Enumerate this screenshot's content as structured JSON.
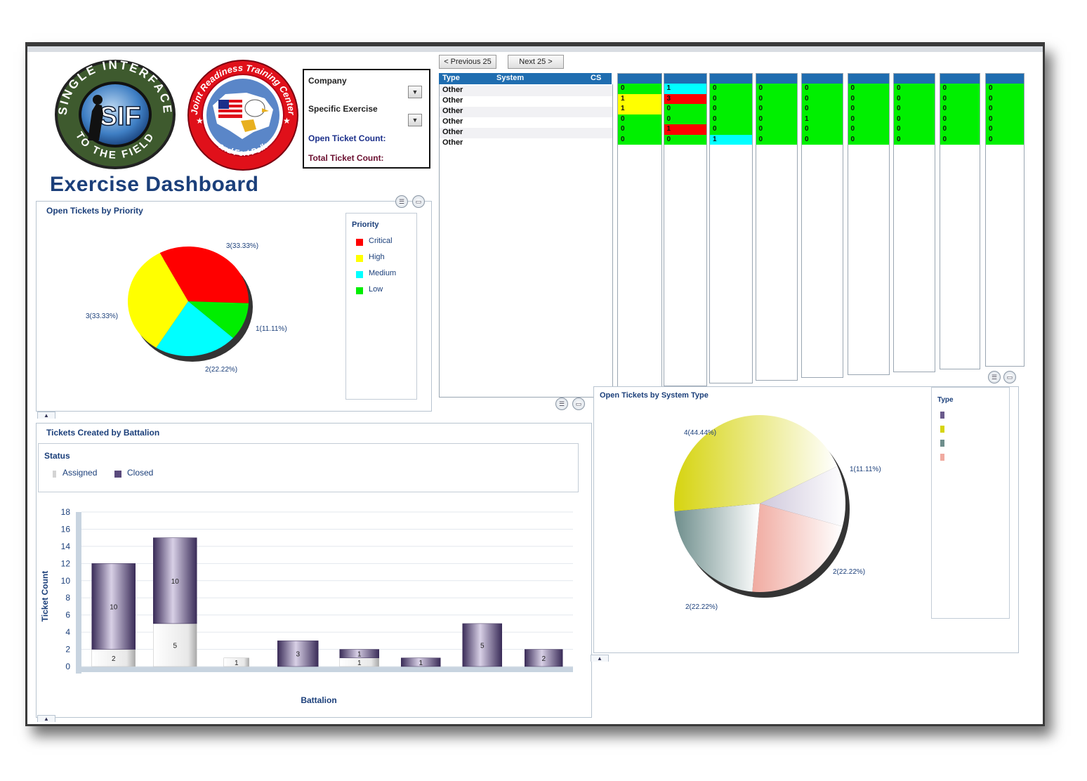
{
  "logos": {
    "sif_top_text": "SINGLE INTERFACE",
    "sif_center_text": "SIF",
    "sif_bottom_text": "TO THE FIELD",
    "jrtc_top_text": "Joint Readiness Training Center",
    "jrtc_bottom_text": "and Fort Polk"
  },
  "dashboard_title": "Exercise Dashboard",
  "filters": {
    "company_label": "Company",
    "exercise_label": "Specific Exercise",
    "open_count_label": "Open Ticket Count:",
    "total_count_label": "Total Ticket Count:"
  },
  "pager": {
    "prev_label": "< Previous 25",
    "next_label": "Next 25 >"
  },
  "grid": {
    "columns": [
      "Type",
      "System",
      "CS"
    ],
    "rows": [
      "Other",
      "Other",
      "Other",
      "Other",
      "Other",
      "Other"
    ]
  },
  "status_columns": [
    {
      "cells": [
        {
          "v": "0",
          "c": "#00f000"
        },
        {
          "v": "1",
          "c": "#ffff00"
        },
        {
          "v": "1",
          "c": "#ffff00"
        },
        {
          "v": "0",
          "c": "#00f000"
        },
        {
          "v": "0",
          "c": "#00f000"
        },
        {
          "v": "0",
          "c": "#00f000"
        }
      ]
    },
    {
      "cells": [
        {
          "v": "1",
          "c": "#00ffff"
        },
        {
          "v": "3",
          "c": "#ff0000"
        },
        {
          "v": "0",
          "c": "#00f000"
        },
        {
          "v": "0",
          "c": "#00f000"
        },
        {
          "v": "1",
          "c": "#ff0000"
        },
        {
          "v": "0",
          "c": "#00f000"
        }
      ]
    },
    {
      "cells": [
        {
          "v": "0",
          "c": "#00f000"
        },
        {
          "v": "0",
          "c": "#00f000"
        },
        {
          "v": "0",
          "c": "#00f000"
        },
        {
          "v": "0",
          "c": "#00f000"
        },
        {
          "v": "0",
          "c": "#00f000"
        },
        {
          "v": "1",
          "c": "#00ffff"
        }
      ]
    },
    {
      "cells": [
        {
          "v": "0",
          "c": "#00f000"
        },
        {
          "v": "0",
          "c": "#00f000"
        },
        {
          "v": "0",
          "c": "#00f000"
        },
        {
          "v": "0",
          "c": "#00f000"
        },
        {
          "v": "0",
          "c": "#00f000"
        },
        {
          "v": "0",
          "c": "#00f000"
        }
      ]
    },
    {
      "cells": [
        {
          "v": "0",
          "c": "#00f000"
        },
        {
          "v": "0",
          "c": "#00f000"
        },
        {
          "v": "0",
          "c": "#00f000"
        },
        {
          "v": "1",
          "c": "#00f000"
        },
        {
          "v": "0",
          "c": "#00f000"
        },
        {
          "v": "0",
          "c": "#00f000"
        }
      ]
    },
    {
      "cells": [
        {
          "v": "0",
          "c": "#00f000"
        },
        {
          "v": "0",
          "c": "#00f000"
        },
        {
          "v": "0",
          "c": "#00f000"
        },
        {
          "v": "0",
          "c": "#00f000"
        },
        {
          "v": "0",
          "c": "#00f000"
        },
        {
          "v": "0",
          "c": "#00f000"
        }
      ]
    },
    {
      "cells": [
        {
          "v": "0",
          "c": "#00f000"
        },
        {
          "v": "0",
          "c": "#00f000"
        },
        {
          "v": "0",
          "c": "#00f000"
        },
        {
          "v": "0",
          "c": "#00f000"
        },
        {
          "v": "0",
          "c": "#00f000"
        },
        {
          "v": "0",
          "c": "#00f000"
        }
      ]
    },
    {
      "cells": [
        {
          "v": "0",
          "c": "#00f000"
        },
        {
          "v": "0",
          "c": "#00f000"
        },
        {
          "v": "0",
          "c": "#00f000"
        },
        {
          "v": "0",
          "c": "#00f000"
        },
        {
          "v": "0",
          "c": "#00f000"
        },
        {
          "v": "0",
          "c": "#00f000"
        }
      ]
    },
    {
      "cells": [
        {
          "v": "0",
          "c": "#00f000"
        },
        {
          "v": "0",
          "c": "#00f000"
        },
        {
          "v": "0",
          "c": "#00f000"
        },
        {
          "v": "0",
          "c": "#00f000"
        },
        {
          "v": "0",
          "c": "#00f000"
        },
        {
          "v": "0",
          "c": "#00f000"
        }
      ]
    }
  ],
  "priority_panel": {
    "title": "Open Tickets by Priority",
    "legend_title": "Priority"
  },
  "battalion_panel": {
    "title": "Tickets Created by Battalion",
    "status_title": "Status"
  },
  "system_panel": {
    "title": "Open Tickets by System Type",
    "legend_title": "Type"
  },
  "chart_data": [
    {
      "type": "pie",
      "title": "Open Tickets by Priority",
      "legend_title": "Priority",
      "labels": [
        "Critical",
        "High",
        "Medium",
        "Low"
      ],
      "values": [
        3,
        3,
        2,
        1
      ],
      "data_labels": [
        "3(33.33%)",
        "3(33.33%)",
        "2(22.22%)",
        "1(11.11%)"
      ],
      "colors": [
        "#ff0000",
        "#ffff00",
        "#00ffff",
        "#00ee00"
      ],
      "legend_position": "right"
    },
    {
      "type": "bar",
      "title": "Tickets Created by Battalion",
      "legend_title": "Status",
      "stacked": true,
      "xlabel": "Battalion",
      "ylabel": "Ticket Count",
      "ylim": [
        0,
        18
      ],
      "yticks": [
        0,
        2,
        4,
        6,
        8,
        10,
        12,
        14,
        16,
        18
      ],
      "categories": [
        "",
        "",
        "",
        "",
        "",
        "",
        "",
        ""
      ],
      "series": [
        {
          "name": "Assigned",
          "color": "#e4e4e4",
          "values": [
            2,
            5,
            1,
            0,
            1,
            0,
            0,
            0
          ]
        },
        {
          "name": "Closed",
          "color": "#5a4a7c",
          "values": [
            10,
            10,
            0,
            3,
            1,
            1,
            5,
            2
          ]
        }
      ],
      "legend_position": "top"
    },
    {
      "type": "pie",
      "title": "Open Tickets by System Type",
      "legend_title": "Type",
      "labels": [
        "",
        "",
        "",
        ""
      ],
      "values": [
        1,
        4,
        2,
        2
      ],
      "data_labels": [
        "1(11.11%)",
        "4(44.44%)",
        "2(22.22%)",
        "2(22.22%)"
      ],
      "colors": [
        "#cfc8dc",
        "#d6d410",
        "#6e8e8c",
        "#f0aaa0"
      ],
      "legend_position": "right"
    }
  ]
}
